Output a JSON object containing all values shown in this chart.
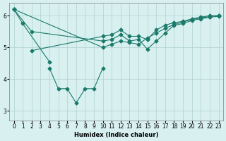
{
  "xlabel": "Humidex (Indice chaleur)",
  "background_color": "#d8f0f0",
  "grid_color": "#b0d0d0",
  "line_color": "#1a7a6a",
  "xlim": [
    -0.5,
    23.5
  ],
  "ylim": [
    2.7,
    6.4
  ],
  "yticks": [
    3,
    4,
    5,
    6
  ],
  "xticks": [
    0,
    1,
    2,
    3,
    4,
    5,
    6,
    7,
    8,
    9,
    10,
    11,
    12,
    13,
    14,
    15,
    16,
    17,
    18,
    19,
    20,
    21,
    22,
    23
  ],
  "line1_x": [
    0,
    1,
    4
  ],
  "line1_y": [
    6.2,
    5.75,
    4.55
  ],
  "line2_x": [
    4,
    5,
    6,
    7,
    8,
    9,
    10
  ],
  "line2_y": [
    4.35,
    3.7,
    3.7,
    3.25,
    3.7,
    3.7,
    4.35
  ],
  "line3_x": [
    0,
    2,
    10,
    11,
    12,
    13,
    14,
    15,
    16,
    17,
    18,
    19,
    20,
    21,
    22,
    23
  ],
  "line3_y": [
    6.2,
    5.5,
    5.2,
    5.25,
    5.4,
    5.2,
    5.25,
    4.95,
    5.2,
    5.45,
    5.7,
    5.75,
    5.85,
    5.9,
    5.95,
    5.98
  ],
  "line4_x": [
    0,
    10,
    11,
    12,
    13,
    14,
    15,
    16,
    17,
    18,
    19,
    20,
    21,
    22,
    23
  ],
  "line4_y": [
    6.2,
    5.0,
    5.1,
    5.2,
    5.15,
    5.1,
    5.3,
    5.45,
    5.6,
    5.72,
    5.8,
    5.88,
    5.93,
    5.97,
    6.0
  ],
  "line5_x": [
    2,
    10,
    11,
    12,
    13,
    14,
    15,
    16,
    17,
    18,
    19,
    20,
    21,
    22,
    23
  ],
  "line5_y": [
    4.9,
    5.35,
    5.4,
    5.55,
    5.35,
    5.35,
    5.25,
    5.55,
    5.7,
    5.78,
    5.82,
    5.9,
    5.95,
    6.0,
    6.0
  ]
}
